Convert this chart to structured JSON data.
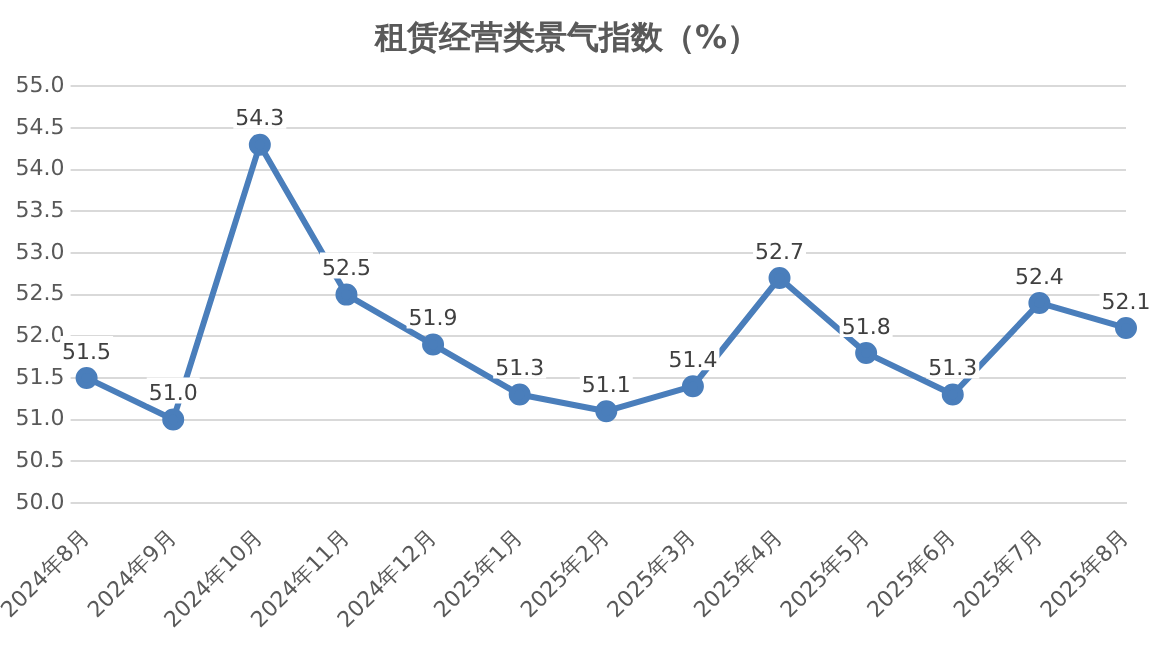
{
  "chart_data": {
    "type": "line",
    "title": "租赁经营类景气指数（%）",
    "categories": [
      "2024年8月",
      "2024年9月",
      "2024年10月",
      "2024年11月",
      "2024年12月",
      "2025年1月",
      "2025年2月",
      "2025年3月",
      "2025年4月",
      "2025年5月",
      "2025年6月",
      "2025年7月",
      "2025年8月"
    ],
    "series": [
      {
        "color": "#4a7ebb",
        "values": [
          51.5,
          51.0,
          54.3,
          52.5,
          51.9,
          51.3,
          51.1,
          51.4,
          52.7,
          51.8,
          51.3,
          52.4,
          52.1
        ],
        "value_labels": [
          "51.5",
          "51.0",
          "54.3",
          "52.5",
          "51.9",
          "51.3",
          "51.1",
          "51.4",
          "52.7",
          "51.8",
          "51.3",
          "52.4",
          "52.1"
        ]
      }
    ],
    "ylim": [
      50,
      55
    ],
    "yticks": [
      {
        "value": 50,
        "label": "50.0"
      },
      {
        "value": 50.5,
        "label": "50.5"
      },
      {
        "value": 51,
        "label": "51.0"
      },
      {
        "value": 51.5,
        "label": "51.5"
      },
      {
        "value": 52,
        "label": "52.0"
      },
      {
        "value": 52.5,
        "label": "52.5"
      },
      {
        "value": 53,
        "label": "53.0"
      },
      {
        "value": 53.5,
        "label": "53.5"
      },
      {
        "value": 54,
        "label": "54.0"
      },
      {
        "value": 54.5,
        "label": "54.5"
      },
      {
        "value": 55,
        "label": "55.0"
      }
    ],
    "grid": "y",
    "legend": false,
    "marker": "circle",
    "line_style": "solid"
  }
}
